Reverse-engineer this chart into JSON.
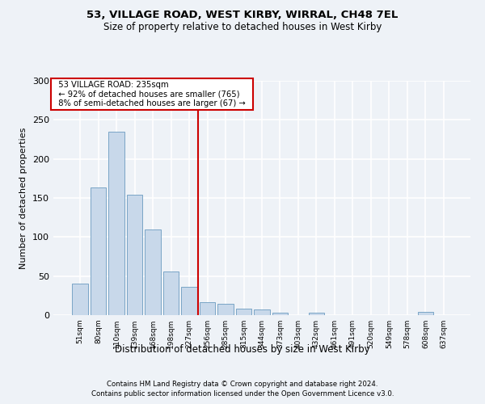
{
  "title1": "53, VILLAGE ROAD, WEST KIRBY, WIRRAL, CH48 7EL",
  "title2": "Size of property relative to detached houses in West Kirby",
  "xlabel": "Distribution of detached houses by size in West Kirby",
  "ylabel": "Number of detached properties",
  "footer1": "Contains HM Land Registry data © Crown copyright and database right 2024.",
  "footer2": "Contains public sector information licensed under the Open Government Licence v3.0.",
  "annotation_title": "53 VILLAGE ROAD: 235sqm",
  "annotation_line1": "← 92% of detached houses are smaller (765)",
  "annotation_line2": "8% of semi-detached houses are larger (67) →",
  "bar_labels": [
    "51sqm",
    "80sqm",
    "110sqm",
    "139sqm",
    "168sqm",
    "198sqm",
    "227sqm",
    "256sqm",
    "285sqm",
    "315sqm",
    "344sqm",
    "373sqm",
    "403sqm",
    "432sqm",
    "461sqm",
    "491sqm",
    "520sqm",
    "549sqm",
    "578sqm",
    "608sqm",
    "637sqm"
  ],
  "bar_values": [
    40,
    163,
    235,
    154,
    110,
    56,
    36,
    17,
    15,
    8,
    7,
    3,
    0,
    3,
    0,
    0,
    0,
    0,
    0,
    4,
    0
  ],
  "bar_color": "#c8d8ea",
  "bar_edge_color": "#6a9bbf",
  "vline_color": "#cc0000",
  "annotation_box_color": "#cc0000",
  "ylim": [
    0,
    300
  ],
  "yticks": [
    0,
    50,
    100,
    150,
    200,
    250,
    300
  ],
  "bg_color": "#eef2f7",
  "plot_bg_color": "#eef2f7",
  "grid_color": "#ffffff"
}
